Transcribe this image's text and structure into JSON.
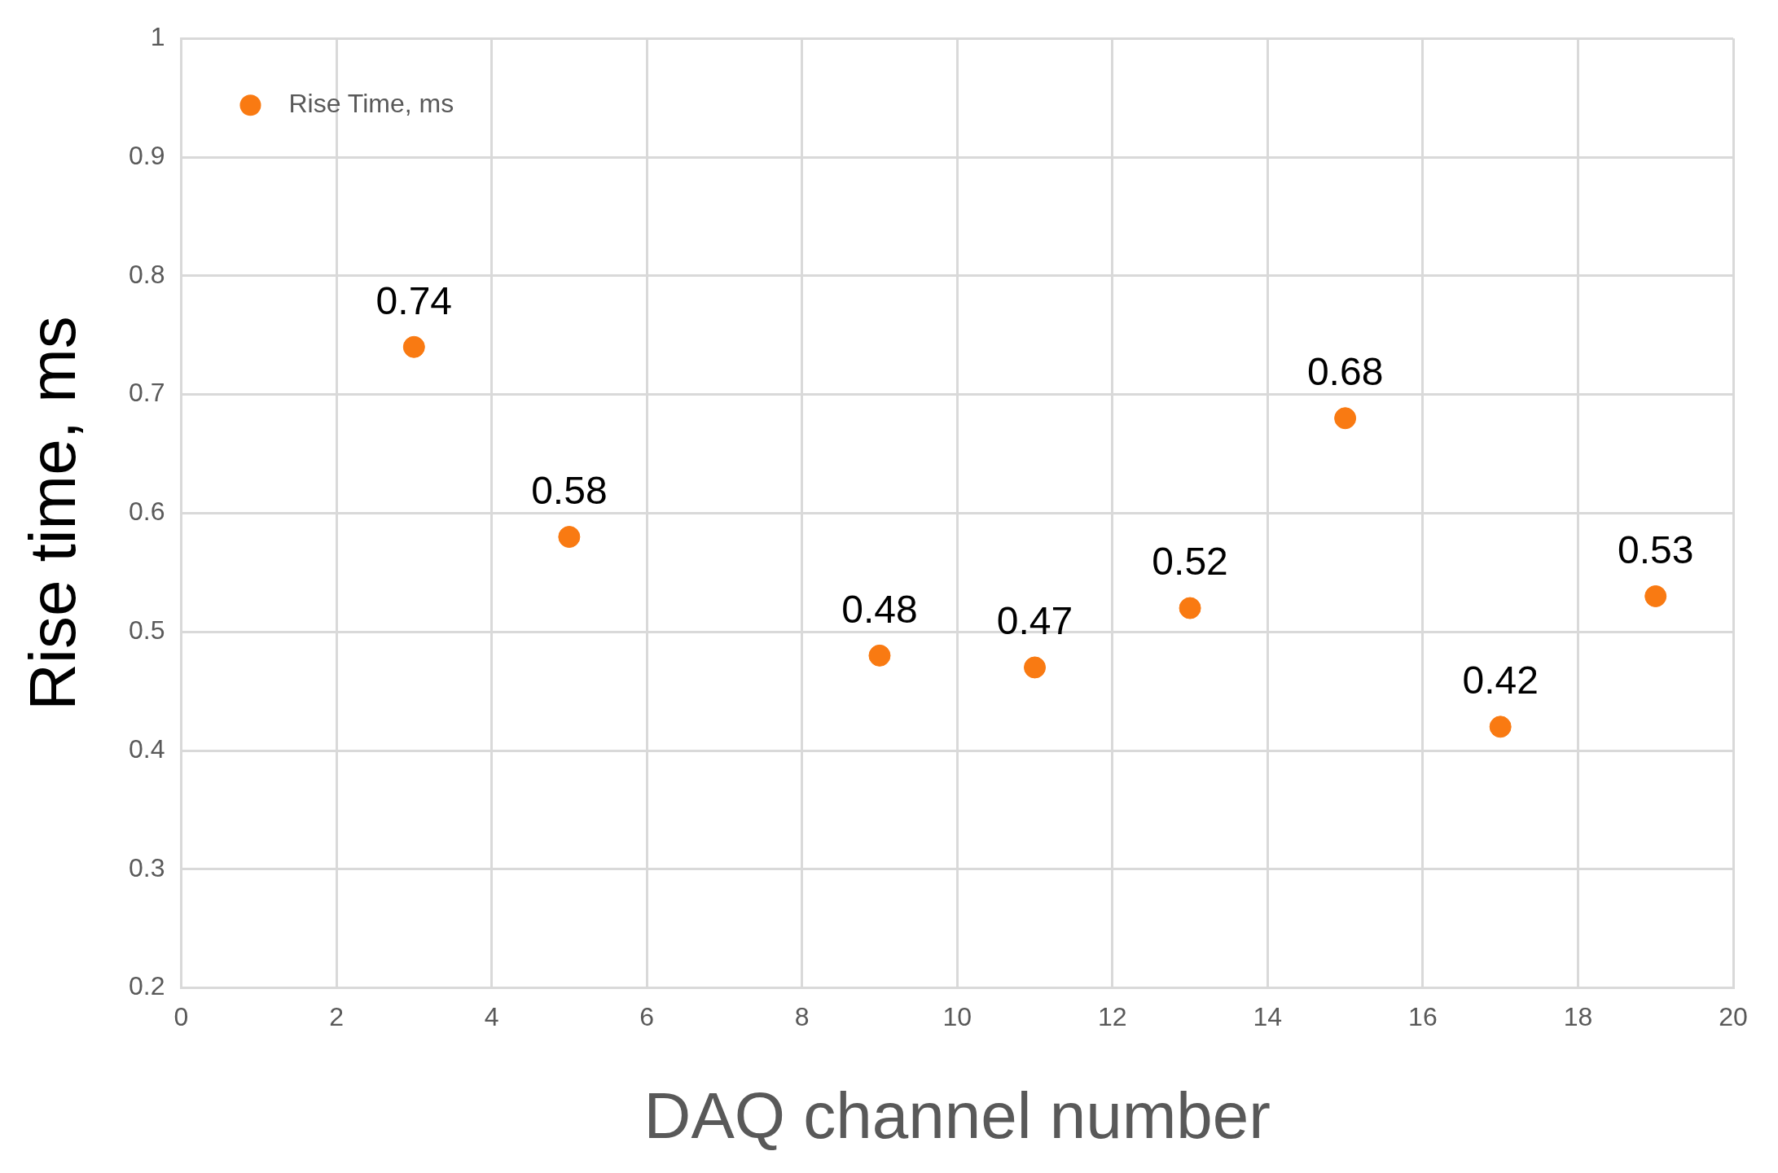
{
  "chart_data": {
    "type": "scatter",
    "xlabel": "DAQ channel number",
    "ylabel": "Rise time, ms",
    "x": [
      3,
      5,
      9,
      11,
      13,
      15,
      17,
      19
    ],
    "series": [
      {
        "name": "Rise Time, ms",
        "color": "#f97a12",
        "values": [
          0.74,
          0.58,
          0.48,
          0.47,
          0.52,
          0.68,
          0.42,
          0.53
        ]
      }
    ],
    "xlim": [
      0,
      20
    ],
    "xticks": [
      0,
      2,
      4,
      6,
      8,
      10,
      12,
      14,
      16,
      18,
      20
    ],
    "ylim": [
      0.2,
      1
    ],
    "yticks": [
      0.2,
      0.3,
      0.4,
      0.5,
      0.6,
      0.7,
      0.8,
      0.9,
      1
    ],
    "grid": true,
    "legend": "top left",
    "marker": "circle",
    "data_labels": true
  }
}
